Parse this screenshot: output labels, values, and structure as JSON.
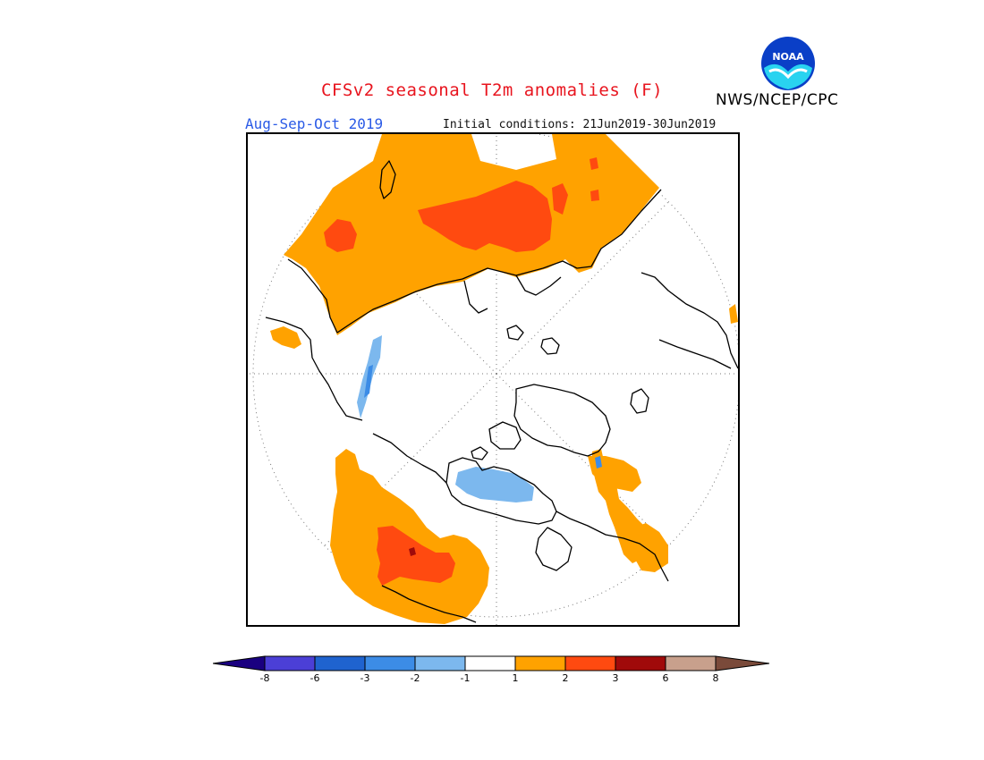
{
  "header": {
    "title": "CFSv2 seasonal T2m anomalies (F)",
    "agency": "NWS/NCEP/CPC",
    "season": "Aug-Sep-Oct 2019",
    "initial_conditions": "Initial conditions: 21Jun2019-30Jun2019",
    "logo_text": "NOAA"
  },
  "map": {
    "projection": "north polar stereographic",
    "variable": "2m temperature anomaly",
    "units": "F"
  },
  "colorbar": {
    "labels": [
      "-8",
      "-6",
      "-3",
      "-2",
      "-1",
      "1",
      "2",
      "3",
      "6",
      "8"
    ],
    "colors": [
      "#1a0080",
      "#4b3fd6",
      "#1f63cf",
      "#3c8ce6",
      "#7cb8ee",
      "#ffffff",
      "#ffa200",
      "#ff4a10",
      "#a00a0a",
      "#c8a08c",
      "#7a4a3a"
    ],
    "bins": [
      "< -8",
      "-8 to -6",
      "-6 to -3",
      "-3 to -2",
      "-2 to -1",
      "-1 to 1",
      "1 to 2",
      "2 to 3",
      "3 to 6",
      "6 to 8",
      "> 8"
    ]
  },
  "colors": {
    "title": "#e8141e",
    "season": "#2a5ae6",
    "warm1": "#ffa200",
    "warm2": "#ff4a10",
    "warm3": "#a00a0a",
    "cool1": "#7cb8ee",
    "cool2": "#3c8ce6"
  }
}
